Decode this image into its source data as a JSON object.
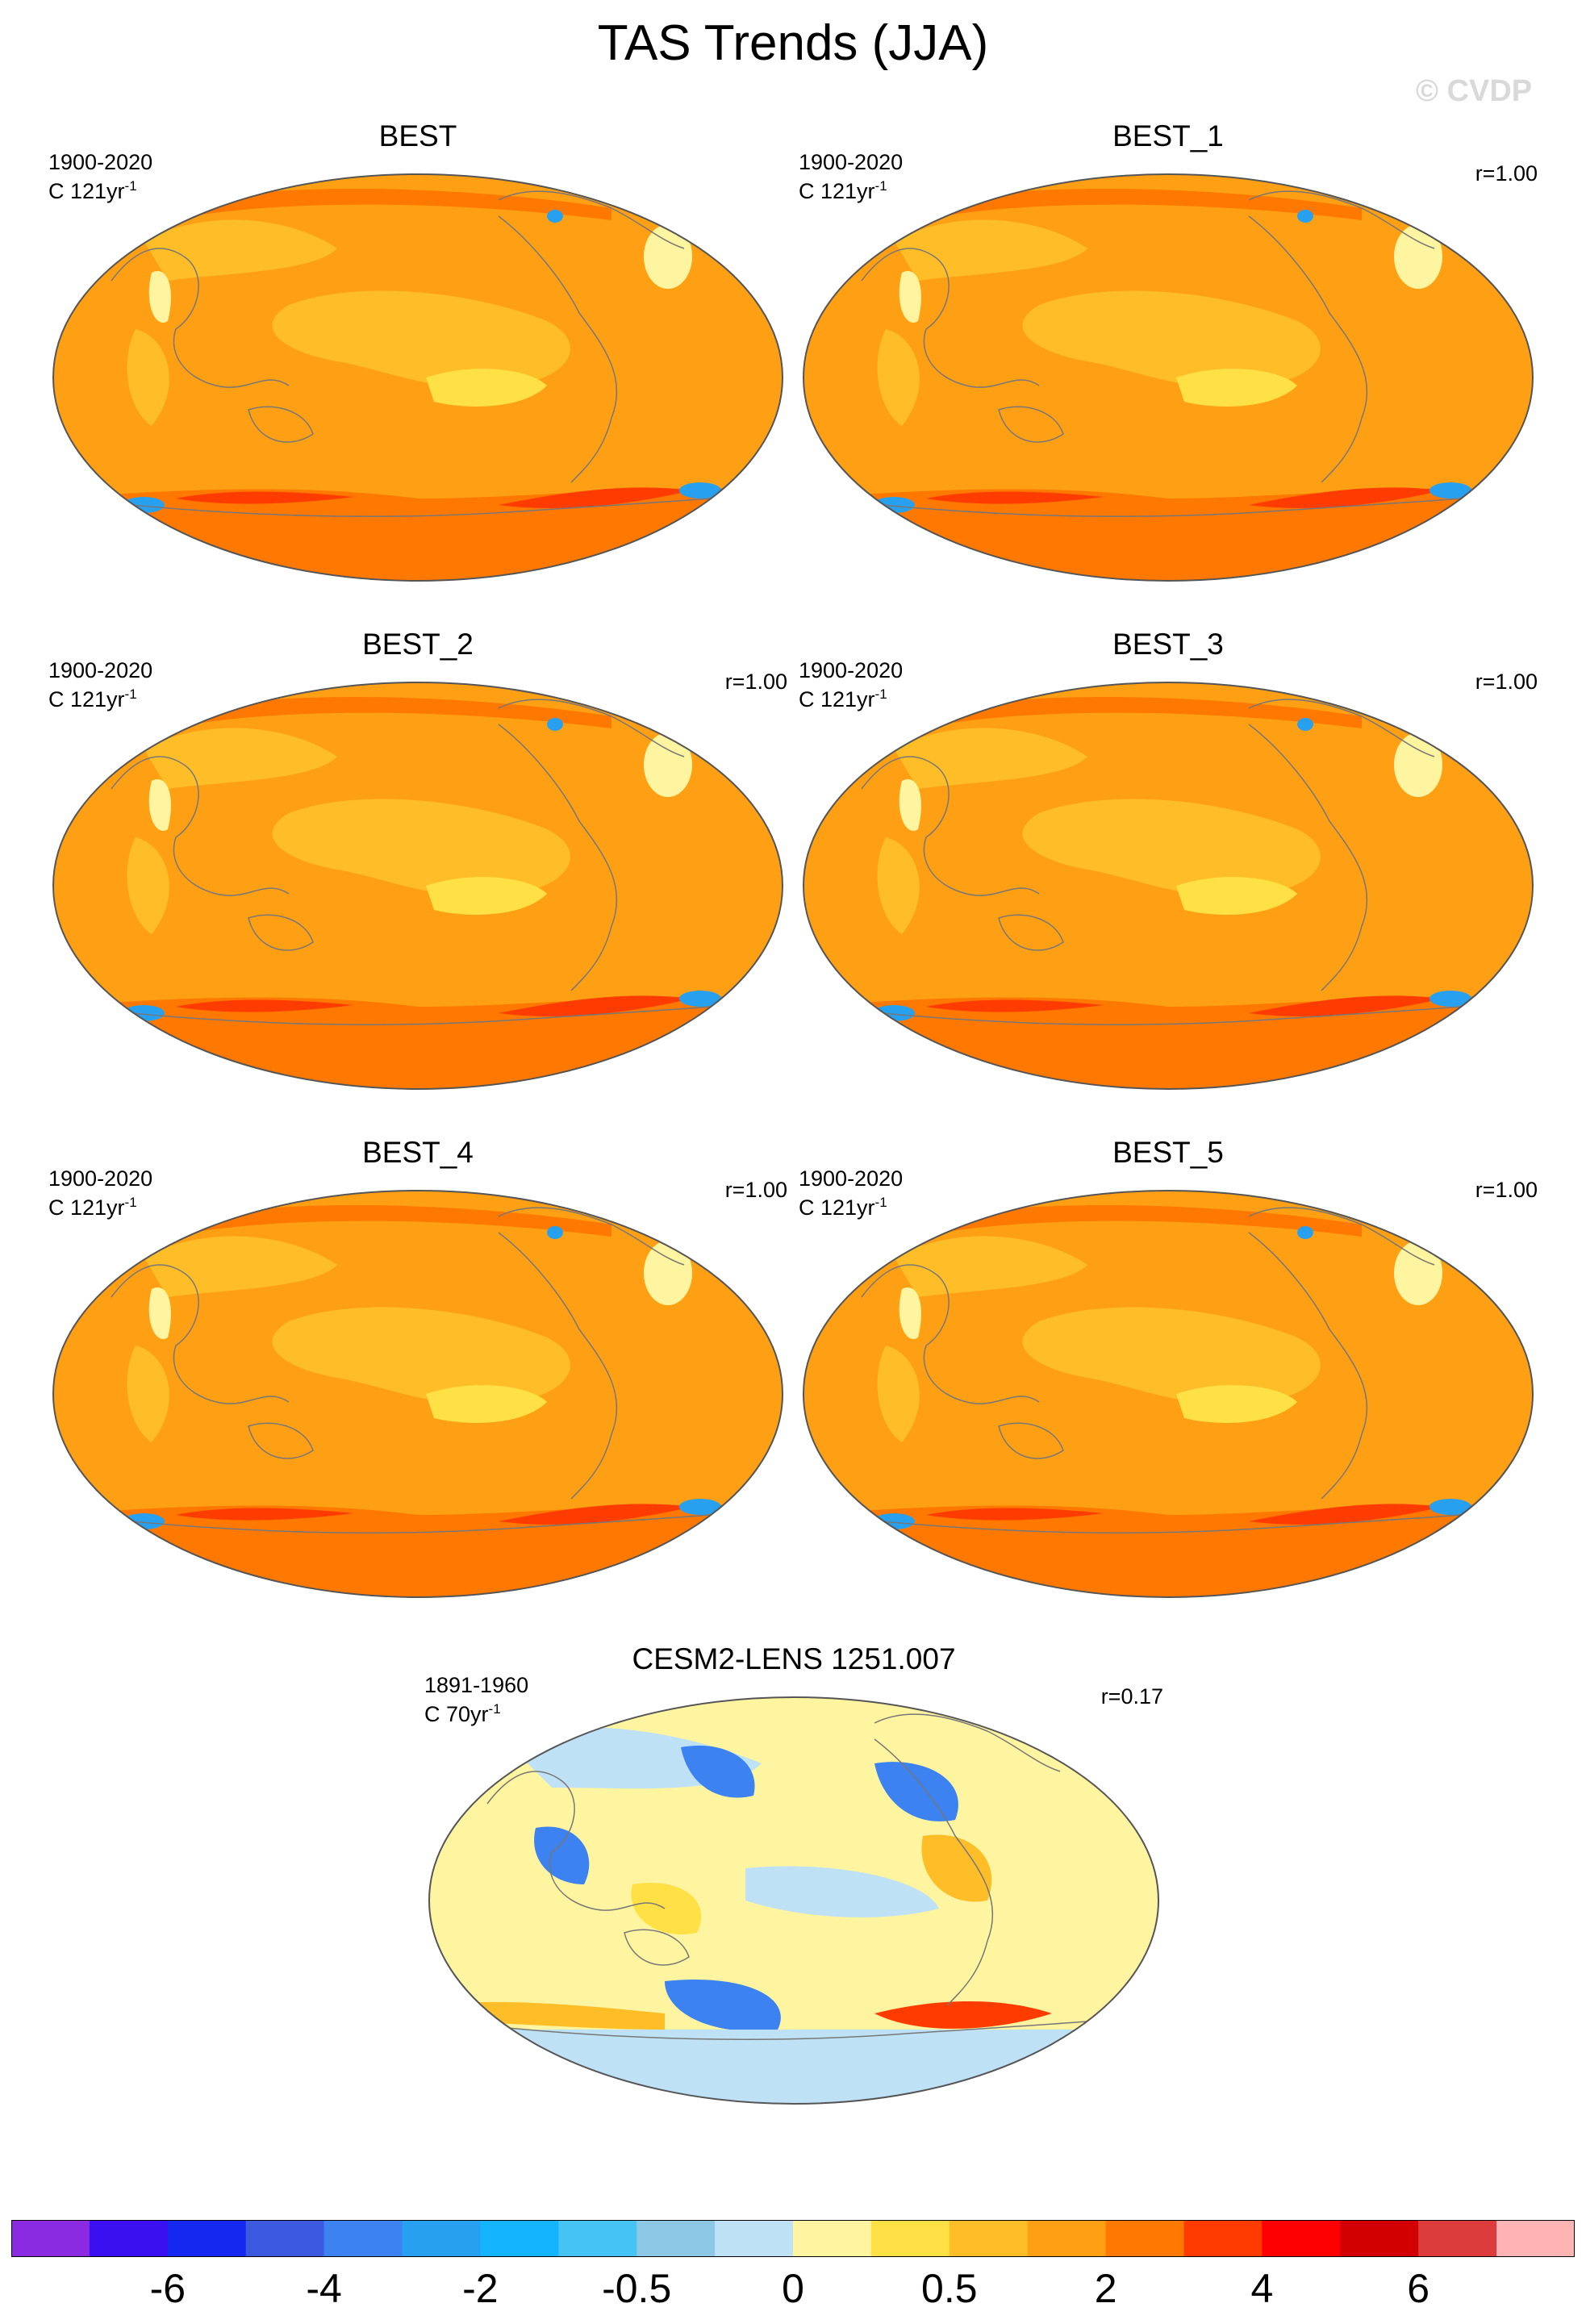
{
  "title": "TAS Trends (JJA)",
  "watermark": "© CVDP",
  "panels": [
    {
      "title": "BEST",
      "period": "1900-2020",
      "units": "C 121yr",
      "units_sup": "-1",
      "corr": "",
      "style": "obs"
    },
    {
      "title": "BEST_1",
      "period": "1900-2020",
      "units": "C 121yr",
      "units_sup": "-1",
      "corr": "r=1.00",
      "style": "obs"
    },
    {
      "title": "BEST_2",
      "period": "1900-2020",
      "units": "C 121yr",
      "units_sup": "-1",
      "corr": "r=1.00",
      "style": "obs"
    },
    {
      "title": "BEST_3",
      "period": "1900-2020",
      "units": "C 121yr",
      "units_sup": "-1",
      "corr": "r=1.00",
      "style": "obs"
    },
    {
      "title": "BEST_4",
      "period": "1900-2020",
      "units": "C 121yr",
      "units_sup": "-1",
      "corr": "r=1.00",
      "style": "obs"
    },
    {
      "title": "BEST_5",
      "period": "1900-2020",
      "units": "C 121yr",
      "units_sup": "-1",
      "corr": "r=1.00",
      "style": "obs"
    },
    {
      "title": "CESM2-LENS 1251.007",
      "period": "1891-1960",
      "units": "C 70yr",
      "units_sup": "-1",
      "corr": "r=0.17",
      "style": "model"
    }
  ],
  "colorbar": {
    "colors": [
      "#8a2be2",
      "#3a10f0",
      "#1428f0",
      "#3c5ae0",
      "#3c82f0",
      "#28a0f0",
      "#14b4ff",
      "#46c3f5",
      "#8cc8e6",
      "#bee1f5",
      "#fff5a0",
      "#ffe146",
      "#ffbe28",
      "#ffa014",
      "#ff7800",
      "#ff3c00",
      "#ff0000",
      "#d20000",
      "#dc3c3c",
      "#ffb4b4"
    ],
    "labels": [
      "-6",
      "-4",
      "-2",
      "-0.5",
      "0",
      "0.5",
      "2",
      "4",
      "6"
    ]
  },
  "palette": {
    "obs_base": "#ffa014",
    "obs_light": "#ffbe28",
    "obs_pale": "#ffe146",
    "obs_white": "#fff5a0",
    "obs_dark": "#ff7800",
    "obs_red": "#ff3c00",
    "obs_blue": "#28a0f0",
    "model_base": "#fff5a0",
    "model_blue": "#8cc8e6",
    "model_lightblue": "#bee1f5",
    "model_darkblue": "#3c82f0",
    "model_yellow": "#ffe146",
    "model_orange": "#ffbe28",
    "model_red": "#ff3c00"
  }
}
